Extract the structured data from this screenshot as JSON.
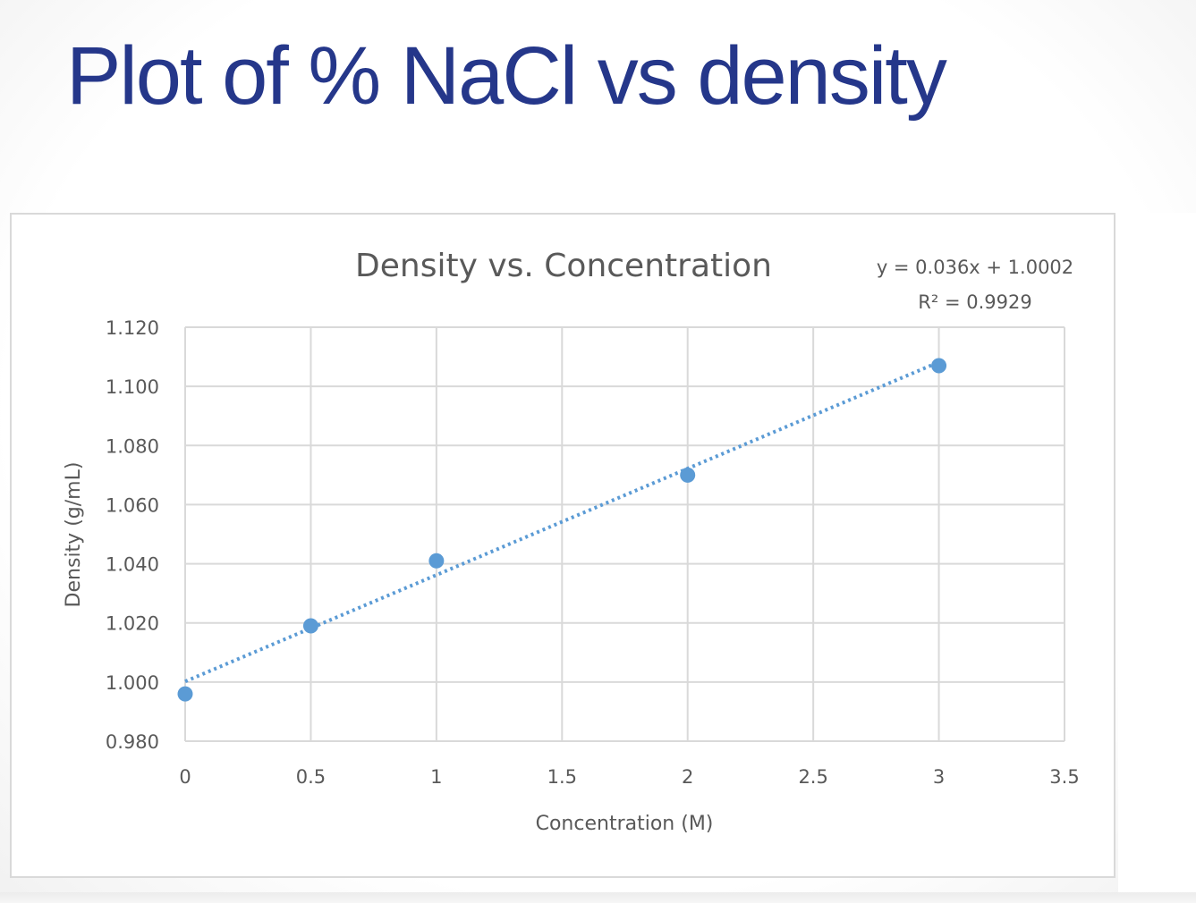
{
  "slide": {
    "title": "Plot of % NaCl vs density"
  },
  "chart_data": {
    "type": "scatter",
    "title": "Density vs. Concentration",
    "xlabel": "Concentration (M)",
    "ylabel": "Density (g/mL)",
    "xlim": [
      0,
      3.5
    ],
    "ylim": [
      0.98,
      1.12
    ],
    "xticks": [
      0,
      0.5,
      1,
      1.5,
      2,
      2.5,
      3,
      3.5
    ],
    "xtick_labels": [
      "0",
      "0.5",
      "1",
      "1.5",
      "2",
      "2.5",
      "3",
      "3.5"
    ],
    "yticks": [
      0.98,
      1.0,
      1.02,
      1.04,
      1.06,
      1.08,
      1.1,
      1.12
    ],
    "ytick_labels": [
      "0.980",
      "1.000",
      "1.020",
      "1.040",
      "1.060",
      "1.080",
      "1.100",
      "1.120"
    ],
    "grid": true,
    "series": [
      {
        "name": "Density",
        "x": [
          0,
          0.5,
          1,
          2,
          3
        ],
        "y": [
          0.996,
          1.019,
          1.041,
          1.07,
          1.107
        ],
        "color": "#5b9bd5"
      }
    ],
    "trendline": {
      "type": "linear",
      "slope": 0.036,
      "intercept": 1.0002,
      "x_range": [
        0,
        3
      ],
      "style": "dotted",
      "color": "#5b9bd5",
      "equation_label": "y = 0.036x + 1.0002",
      "r2_label": "R² = 0.9929"
    }
  },
  "colors": {
    "title": "#25378a",
    "text": "#595959",
    "grid": "#d9d9d9",
    "marker": "#5b9bd5"
  }
}
